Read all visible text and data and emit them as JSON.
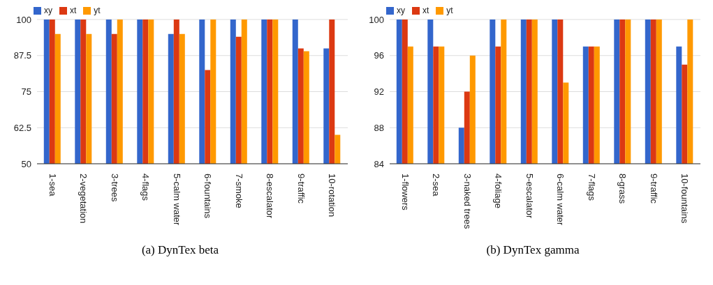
{
  "chart_data": [
    {
      "type": "bar",
      "title": "(a) DynTex beta",
      "categories": [
        "1-sea",
        "2-vegetation",
        "3-trees",
        "4-flags",
        "5-calm water",
        "6-fountains",
        "7-smoke",
        "8-escalator",
        "9-traffic",
        "10-rotation"
      ],
      "series": [
        {
          "name": "xy",
          "color": "#3366cc",
          "values": [
            100,
            100,
            100,
            100,
            95,
            100,
            100,
            100,
            100,
            90
          ]
        },
        {
          "name": "xt",
          "color": "#dc3912",
          "values": [
            100,
            100,
            95,
            100,
            100,
            82.5,
            94,
            100,
            90,
            100
          ]
        },
        {
          "name": "yt",
          "color": "#ff9900",
          "values": [
            95,
            95,
            100,
            100,
            95,
            100,
            100,
            100,
            89,
            60
          ]
        }
      ],
      "ylim": [
        50,
        100
      ],
      "yticks": [
        50,
        62.5,
        75,
        87.5,
        100
      ],
      "grid": "y",
      "legend": "top left"
    },
    {
      "type": "bar",
      "title": "(b) DynTex gamma",
      "categories": [
        "1-flowers",
        "2-sea",
        "3-naked trees",
        "4-foliage",
        "5-escalator",
        "6-calm water",
        "7-flags",
        "8-grass",
        "9-traffic",
        "10-fountains"
      ],
      "series": [
        {
          "name": "xy",
          "color": "#3366cc",
          "values": [
            100,
            100,
            88,
            100,
            100,
            100,
            97,
            100,
            100,
            97
          ]
        },
        {
          "name": "xt",
          "color": "#dc3912",
          "values": [
            100,
            97,
            92,
            97,
            100,
            100,
            97,
            100,
            100,
            95
          ]
        },
        {
          "name": "yt",
          "color": "#ff9900",
          "values": [
            97,
            97,
            96,
            100,
            100,
            93,
            97,
            100,
            100,
            100
          ]
        }
      ],
      "ylim": [
        84,
        100
      ],
      "yticks": [
        84,
        88,
        92,
        96,
        100
      ],
      "grid": "y",
      "legend": "top left"
    }
  ]
}
